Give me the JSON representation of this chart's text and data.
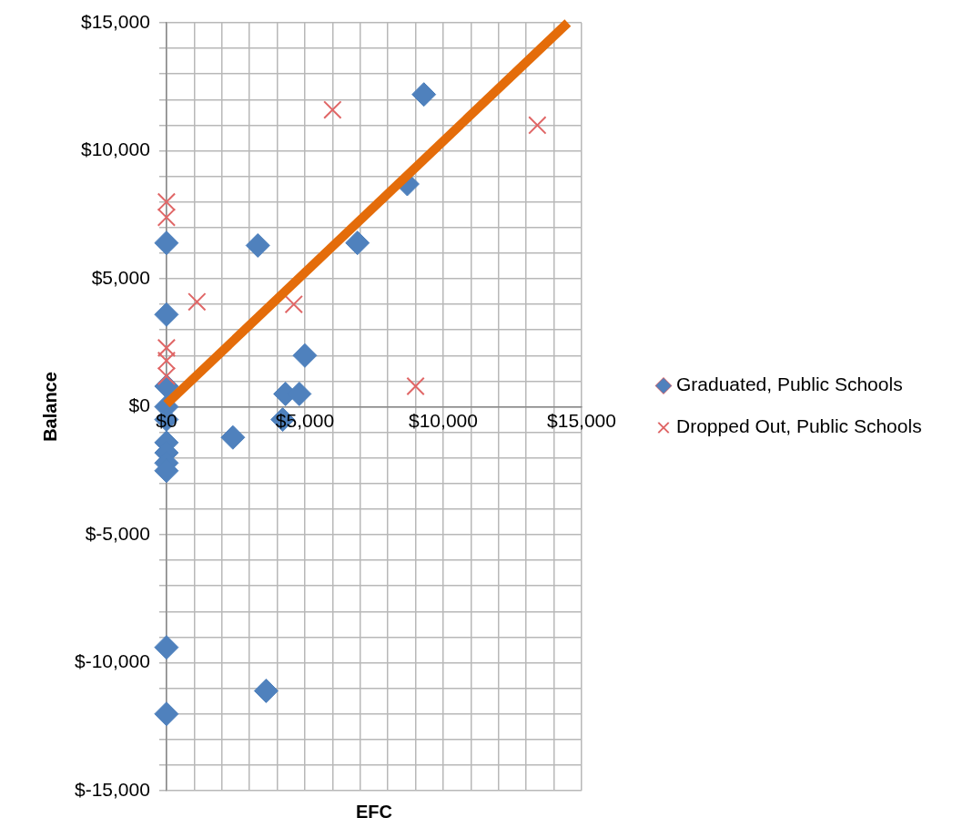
{
  "chart_data": {
    "type": "scatter",
    "xlabel": "EFC",
    "ylabel": "Balance",
    "xlim": [
      0,
      15000
    ],
    "xticks": [
      {
        "value": 0,
        "label": "$0"
      },
      {
        "value": 1000,
        "label": null
      },
      {
        "value": 2000,
        "label": null
      },
      {
        "value": 3000,
        "label": null
      },
      {
        "value": 4000,
        "label": null
      },
      {
        "value": 5000,
        "label": "$5,000"
      },
      {
        "value": 6000,
        "label": null
      },
      {
        "value": 7000,
        "label": null
      },
      {
        "value": 8000,
        "label": null
      },
      {
        "value": 9000,
        "label": null
      },
      {
        "value": 10000,
        "label": "$10,000"
      },
      {
        "value": 11000,
        "label": null
      },
      {
        "value": 12000,
        "label": null
      },
      {
        "value": 13000,
        "label": null
      },
      {
        "value": 14000,
        "label": null
      },
      {
        "value": 15000,
        "label": "$15,000"
      }
    ],
    "ylim": [
      -15000,
      15000
    ],
    "yticks": [
      {
        "value": -15000,
        "label": "$-15,000"
      },
      {
        "value": -14000,
        "label": null
      },
      {
        "value": -13000,
        "label": null
      },
      {
        "value": -12000,
        "label": null
      },
      {
        "value": -11000,
        "label": null
      },
      {
        "value": -10000,
        "label": "$-10,000"
      },
      {
        "value": -9000,
        "label": null
      },
      {
        "value": -8000,
        "label": null
      },
      {
        "value": -7000,
        "label": null
      },
      {
        "value": -6000,
        "label": null
      },
      {
        "value": -5000,
        "label": "$-5,000"
      },
      {
        "value": -4000,
        "label": null
      },
      {
        "value": -3000,
        "label": null
      },
      {
        "value": -2000,
        "label": null
      },
      {
        "value": -1000,
        "label": null
      },
      {
        "value": 0,
        "label": "$0"
      },
      {
        "value": 1000,
        "label": null
      },
      {
        "value": 2000,
        "label": null
      },
      {
        "value": 3000,
        "label": null
      },
      {
        "value": 4000,
        "label": null
      },
      {
        "value": 5000,
        "label": "$5,000"
      },
      {
        "value": 6000,
        "label": null
      },
      {
        "value": 7000,
        "label": null
      },
      {
        "value": 8000,
        "label": null
      },
      {
        "value": 9000,
        "label": null
      },
      {
        "value": 10000,
        "label": "$10,000"
      },
      {
        "value": 11000,
        "label": null
      },
      {
        "value": 12000,
        "label": null
      },
      {
        "value": 13000,
        "label": null
      },
      {
        "value": 14000,
        "label": null
      },
      {
        "value": 15000,
        "label": "$15,000"
      }
    ],
    "grid": true,
    "legend": "right",
    "series": [
      {
        "name": "Graduated, Public Schools",
        "color": "#4f81bd",
        "marker": "diamond",
        "x": [
          9300,
          8700,
          6900,
          3300,
          0,
          0,
          5000,
          4300,
          4800,
          4200,
          2400,
          0,
          0,
          0,
          0,
          0,
          0,
          0,
          0,
          0,
          3600
        ],
        "values": [
          12200,
          8700,
          6400,
          6300,
          6400,
          3600,
          2000,
          500,
          500,
          -500,
          -1200,
          800,
          0,
          -500,
          -1400,
          -1800,
          -2200,
          -2500,
          -9400,
          -12000,
          -11100
        ]
      },
      {
        "name": "Dropped Out, Public Schools",
        "color": "#e06666",
        "marker": "cross",
        "x": [
          6000,
          13400,
          0,
          0,
          1100,
          4600,
          0,
          0,
          0,
          9000
        ],
        "values": [
          11600,
          11000,
          8000,
          7400,
          4100,
          4000,
          2300,
          1800,
          1200,
          800
        ]
      },
      {
        "type": "line",
        "color": "#e46c0a",
        "marker": "none",
        "x": [
          0,
          14500
        ],
        "values": [
          100,
          15000
        ]
      }
    ]
  }
}
